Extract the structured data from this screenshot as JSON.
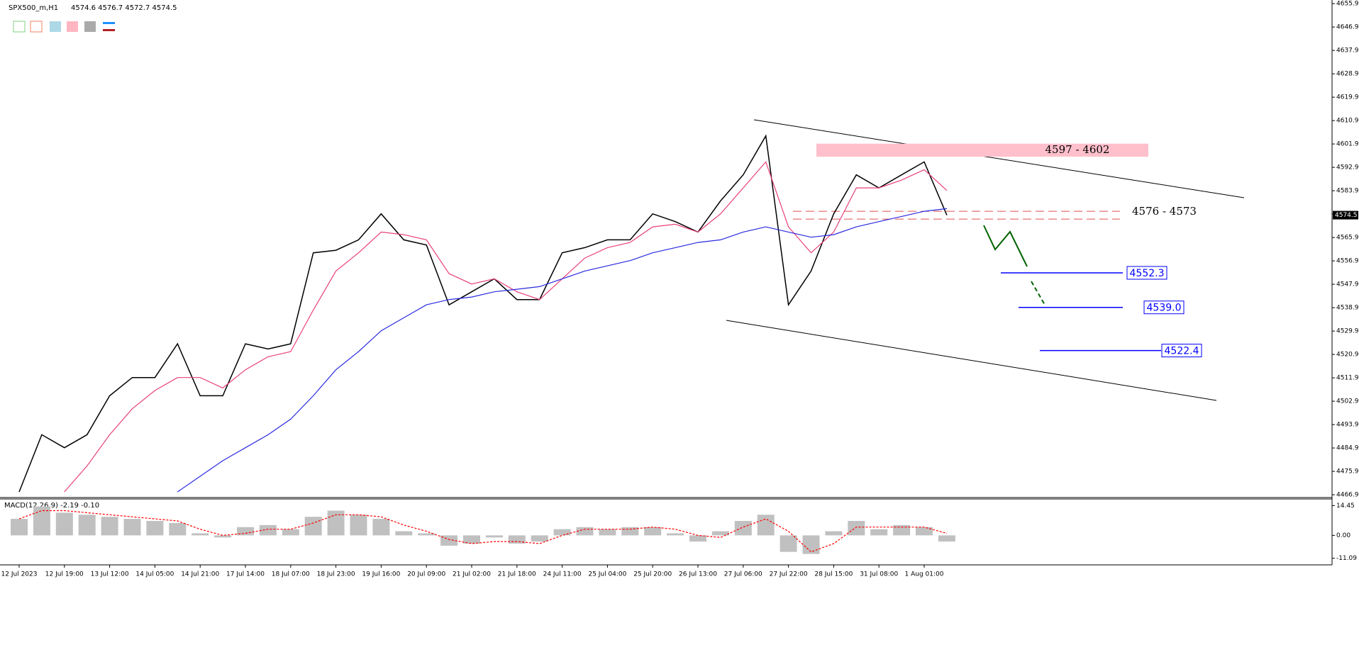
{
  "header": {
    "title": "SPX500_m,H1",
    "ohlc": "4574.6 4576.7 4572.7 4574.5"
  },
  "chart_data": [
    {
      "type": "line",
      "categories": [
        "12 Jul 2023",
        null,
        "12 Jul 19:00",
        null,
        "13 Jul 12:00",
        null,
        "14 Jul 05:00",
        null,
        "14 Jul 21:00",
        null,
        "17 Jul 14:00",
        null,
        "18 Jul 07:00",
        null,
        "18 Jul 23:00",
        null,
        "19 Jul 16:00",
        null,
        "20 Jul 09:00",
        null,
        "21 Jul 02:00",
        null,
        "21 Jul 18:00",
        null,
        "24 Jul 11:00",
        null,
        "25 Jul 04:00",
        null,
        "25 Jul 20:00",
        null,
        "26 Jul 13:00",
        null,
        "27 Jul 06:00",
        null,
        "27 Jul 22:00",
        null,
        "28 Jul 15:00",
        null,
        "31 Jul 08:00",
        null,
        "1 Aug 01:00",
        null
      ],
      "series": [
        {
          "color": "#000000",
          "values": [
            4468,
            4490,
            4485,
            4490,
            4505,
            4512,
            4512,
            4525,
            4505,
            4505,
            4525,
            4523,
            4525,
            4560,
            4561,
            4565,
            4575,
            4565,
            4563,
            4540,
            4545,
            4550,
            4542,
            4542,
            4560,
            4562,
            4565,
            4565,
            4575,
            4572,
            4568,
            4580,
            4590,
            4605,
            4540,
            4553,
            4575,
            4590,
            4585,
            4590,
            4595,
            4574.5
          ]
        },
        {
          "color": "#e8407a",
          "values": [
            null,
            null,
            4468,
            4478,
            4490,
            4500,
            4507,
            4512,
            4512,
            4508,
            4515,
            4520,
            4522,
            4538,
            4553,
            4560,
            4568,
            4567,
            4565,
            4552,
            4548,
            4550,
            4545,
            4542,
            4550,
            4558,
            4562,
            4564,
            4570,
            4571,
            4568,
            4575,
            4585,
            4595,
            4570,
            4560,
            4568,
            4585,
            4585,
            4588,
            4592,
            4584
          ]
        },
        {
          "color": "#2a2ae0",
          "values": [
            null,
            null,
            null,
            null,
            null,
            null,
            null,
            4468,
            4474,
            4480,
            4485,
            4490,
            4496,
            4505,
            4515,
            4522,
            4530,
            4535,
            4540,
            4542,
            4543,
            4545,
            4546,
            4547,
            4550,
            4553,
            4555,
            4557,
            4560,
            4562,
            4564,
            4565,
            4568,
            4570,
            4568,
            4566,
            4567,
            4570,
            4572,
            4574,
            4576,
            4577
          ]
        }
      ],
      "ylim": [
        4466.1,
        4657.3
      ],
      "yticks": [
        4655.9,
        4646.9,
        4637.9,
        4628.9,
        4619.9,
        4610.9,
        4601.9,
        4592.9,
        4583.9,
        4574.9,
        4565.9,
        4556.9,
        4547.9,
        4538.9,
        4529.9,
        4520.9,
        4511.9,
        4502.9,
        4493.9,
        4484.9,
        4475.9,
        4466.9
      ],
      "last_price": 4574.5,
      "zones": [
        {
          "label": "4597 - 4602",
          "low": 4597,
          "high": 4602,
          "color": "#ffc0cb"
        }
      ],
      "levels": {
        "label": "4576 - 4573",
        "values": [
          4576,
          4573
        ],
        "color": "#e05050"
      },
      "targets": {
        "values": [
          4552.3,
          4539.0,
          4522.4
        ],
        "value_labels": [
          "4552.3",
          "4539.0",
          "4522.4"
        ],
        "color": "#0000ff"
      }
    },
    {
      "type": "bar",
      "title": "MACD(12,26,9) -2.19 -0.10",
      "series": [
        {
          "color": "#c0c0c0",
          "values": [
            8,
            14,
            11,
            10,
            9,
            8,
            7,
            6,
            1,
            -1,
            4,
            5,
            3,
            9,
            12,
            10,
            8,
            2,
            1,
            -5,
            -4,
            -1,
            -4,
            -3,
            3,
            4,
            3,
            4,
            4,
            1,
            -3,
            2,
            7,
            10,
            -8,
            -9,
            2,
            7,
            3,
            5,
            4,
            -3
          ]
        },
        {
          "color": "#ff0000",
          "type": "line",
          "values": [
            8,
            12,
            12,
            11,
            10,
            9,
            8,
            7,
            3,
            0,
            1,
            3,
            3,
            6,
            10,
            10,
            9,
            5,
            2,
            -2,
            -4,
            -3,
            -3,
            -4,
            0,
            3,
            3,
            3,
            4,
            3,
            0,
            -1,
            4,
            8,
            2,
            -8,
            -4,
            4,
            4,
            4,
            4,
            1
          ]
        }
      ],
      "ylim": [
        -14.3,
        17.66
      ],
      "yticks": [
        14.45,
        {
          "value": 0,
          "label": "0.00"
        },
        -11.09
      ]
    }
  ]
}
